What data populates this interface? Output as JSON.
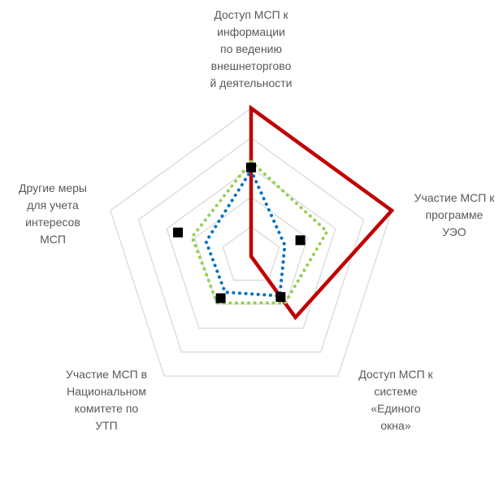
{
  "chart_data": {
    "type": "radar",
    "title": "",
    "axes": [
      "Доступ МСП к\nинформации\nпо ведению\nвнешнеторгово\nй деятельности",
      "Участие МСП к\nпрограмме\nУЭО",
      "Доступ МСП к\nсистеме\n«Единого\nокна»",
      "Участие МСП в\nНациональном\nкомитете по\nУТП",
      "Другие меры\nдля учета\nинтересов\nМСП"
    ],
    "range": [
      0,
      5
    ],
    "rings": 5,
    "series": [
      {
        "values": [
          5.0,
          5.0,
          2.55,
          0.0,
          0.0
        ],
        "color": "#C00000",
        "style": "solid"
      },
      {
        "values": [
          3.2,
          2.7,
          1.95,
          1.95,
          2.1
        ],
        "color": "#92D050",
        "style": "dotted"
      },
      {
        "values": [
          2.9,
          1.2,
          1.65,
          1.5,
          1.6
        ],
        "color": "#0070C0",
        "style": "dotted"
      },
      {
        "values": [
          3.0,
          1.75,
          1.7,
          1.75,
          2.6
        ],
        "color": "#000000",
        "style": "markers"
      }
    ]
  }
}
